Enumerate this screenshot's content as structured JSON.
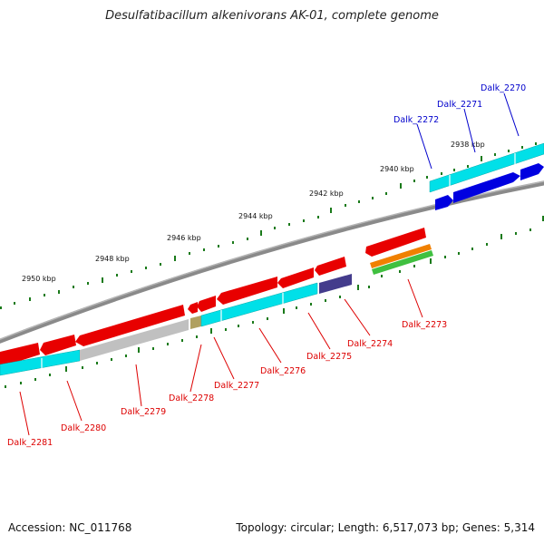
{
  "title": "Desulfatibacillum alkenivorans AK-01, complete genome",
  "footer": {
    "accession": "Accession: NC_011768",
    "summary": "Topology: circular; Length: 6,517,073 bp; Genes: 5,314"
  },
  "ruler_labels": [
    "2938 kbp",
    "2940 kbp",
    "2942 kbp",
    "2944 kbp",
    "2946 kbp",
    "2948 kbp",
    "2950 kbp"
  ],
  "genes_forward": [
    "Dalk_2270",
    "Dalk_2271",
    "Dalk_2272"
  ],
  "genes_reverse": [
    "Dalk_2273",
    "Dalk_2274",
    "Dalk_2275",
    "Dalk_2276",
    "Dalk_2277",
    "Dalk_2278",
    "Dalk_2279",
    "Dalk_2280",
    "Dalk_2281"
  ],
  "colors": {
    "forward_label": "#0000cc",
    "reverse_label": "#dd0000",
    "cds_reverse": "#e80000",
    "cds_forward": "#0000e0",
    "gene_track": "#00e0e8",
    "backbone": "#8a8a8a",
    "ticks": "#1a7a1a",
    "pseudo": "#c0c0c0",
    "misc_feature": "#443c8c",
    "orange_feature": "#f08000",
    "green_feature": "#40c040",
    "olive_feature": "#b0a060"
  }
}
